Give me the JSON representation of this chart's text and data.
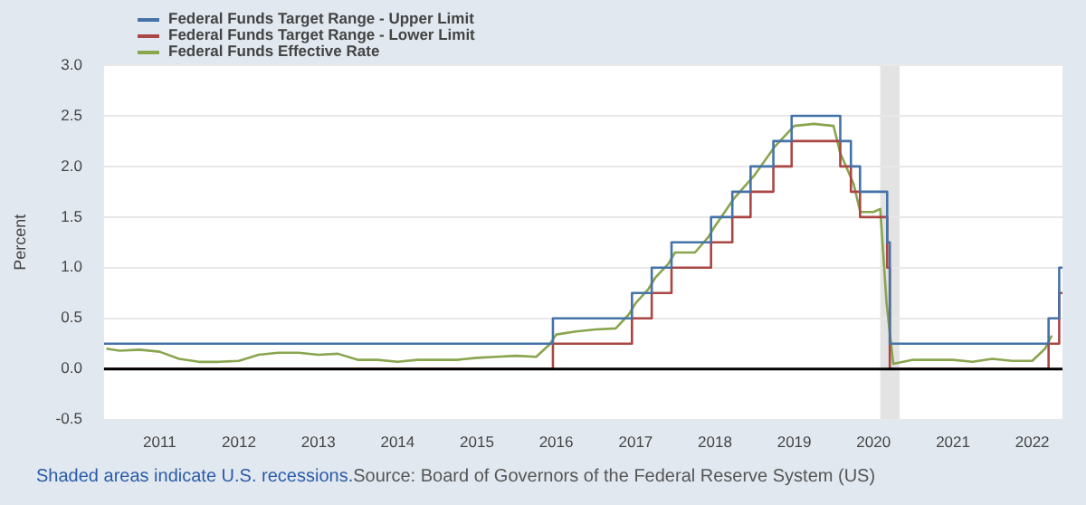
{
  "chart_data": {
    "type": "line",
    "ylabel": "Percent",
    "xlim": [
      "2010-04-20",
      "2022-05-20"
    ],
    "xticks": [
      "2011",
      "2012",
      "2013",
      "2014",
      "2015",
      "2016",
      "2017",
      "2018",
      "2019",
      "2020",
      "2021",
      "2022"
    ],
    "ylim": [
      -0.5,
      3.0
    ],
    "yticks": [
      {
        "value": -0.5,
        "label": "-0.5"
      },
      {
        "value": 0,
        "label": "0.0"
      },
      {
        "value": 0.5,
        "label": "0.5"
      },
      {
        "value": 1,
        "label": "1.0"
      },
      {
        "value": 1.5,
        "label": "1.5"
      },
      {
        "value": 2,
        "label": "2.0"
      },
      {
        "value": 2.5,
        "label": "2.5"
      },
      {
        "value": 3,
        "label": "3.0"
      }
    ],
    "grid": "y",
    "legend": "top left",
    "marker": "none",
    "series": [
      {
        "name": "Federal Funds Target Range - Upper Limit",
        "type": "step",
        "color": "#4572a7",
        "x": [
          "2010-04-20",
          "2015-12-17",
          "2016-12-15",
          "2017-03-16",
          "2017-06-15",
          "2017-12-14",
          "2018-03-22",
          "2018-06-14",
          "2018-09-27",
          "2018-12-20",
          "2019-08-01",
          "2019-09-19",
          "2019-10-31",
          "2020-03-04",
          "2020-03-16",
          "2022-03-17",
          "2022-05-05",
          "2022-05-20"
        ],
        "values": [
          0.25,
          0.5,
          0.75,
          1.0,
          1.25,
          1.5,
          1.75,
          2.0,
          2.25,
          2.5,
          2.25,
          2.0,
          1.75,
          1.25,
          0.25,
          0.5,
          1.0,
          1.0
        ]
      },
      {
        "name": "Federal Funds Target Range - Lower Limit",
        "type": "step",
        "color": "#aa4643",
        "x": [
          "2010-04-20",
          "2015-12-17",
          "2016-12-15",
          "2017-03-16",
          "2017-06-15",
          "2017-12-14",
          "2018-03-22",
          "2018-06-14",
          "2018-09-27",
          "2018-12-20",
          "2019-08-01",
          "2019-09-19",
          "2019-10-31",
          "2020-03-04",
          "2020-03-16",
          "2022-03-17",
          "2022-05-05",
          "2022-05-20"
        ],
        "values": [
          0,
          0.25,
          0.5,
          0.75,
          1.0,
          1.25,
          1.5,
          1.75,
          2.0,
          2.25,
          2.0,
          1.75,
          1.5,
          1.0,
          0,
          0.25,
          0.75,
          0.75
        ]
      },
      {
        "name": "Federal Funds Effective Rate",
        "color": "#89a54e",
        "x": [
          "2010-05",
          "2010-07",
          "2010-10",
          "2011-01",
          "2011-04",
          "2011-07",
          "2011-10",
          "2012-01",
          "2012-04",
          "2012-07",
          "2012-10",
          "2013-01",
          "2013-04",
          "2013-07",
          "2013-10",
          "2014-01",
          "2014-04",
          "2014-07",
          "2014-10",
          "2015-01",
          "2015-04",
          "2015-07",
          "2015-10",
          "2015-12",
          "2016-01",
          "2016-04",
          "2016-07",
          "2016-10",
          "2016-12",
          "2017-01",
          "2017-03",
          "2017-04",
          "2017-06",
          "2017-07",
          "2017-10",
          "2017-12",
          "2018-01",
          "2018-04",
          "2018-07",
          "2018-10",
          "2019-01",
          "2019-04",
          "2019-07",
          "2019-08",
          "2019-10",
          "2019-11",
          "2020-01",
          "2020-02",
          "2020-03",
          "2020-04",
          "2020-07",
          "2020-10",
          "2021-01",
          "2021-04",
          "2021-07",
          "2021-10",
          "2022-01",
          "2022-03",
          "2022-04"
        ],
        "values": [
          0.2,
          0.18,
          0.19,
          0.17,
          0.1,
          0.07,
          0.07,
          0.08,
          0.14,
          0.16,
          0.16,
          0.14,
          0.15,
          0.09,
          0.09,
          0.07,
          0.09,
          0.09,
          0.09,
          0.11,
          0.12,
          0.13,
          0.12,
          0.24,
          0.34,
          0.37,
          0.39,
          0.4,
          0.54,
          0.65,
          0.79,
          0.9,
          1.04,
          1.15,
          1.15,
          1.3,
          1.41,
          1.69,
          1.91,
          2.19,
          2.4,
          2.42,
          2.4,
          2.13,
          1.83,
          1.55,
          1.55,
          1.58,
          0.65,
          0.05,
          0.09,
          0.09,
          0.09,
          0.07,
          0.1,
          0.08,
          0.08,
          0.2,
          0.33
        ]
      }
    ],
    "ref_lines": [
      {
        "axis": "y",
        "value": 0,
        "color": "#000000"
      }
    ],
    "bands": [
      {
        "axis": "x",
        "from": "2020-02-01",
        "to": "2020-04-30",
        "color": "#e3e3e3"
      }
    ],
    "annotations": [
      "Shaded areas indicate U.S. recessions.",
      "Source: Board of Governors of the Federal Reserve System (US)"
    ]
  }
}
